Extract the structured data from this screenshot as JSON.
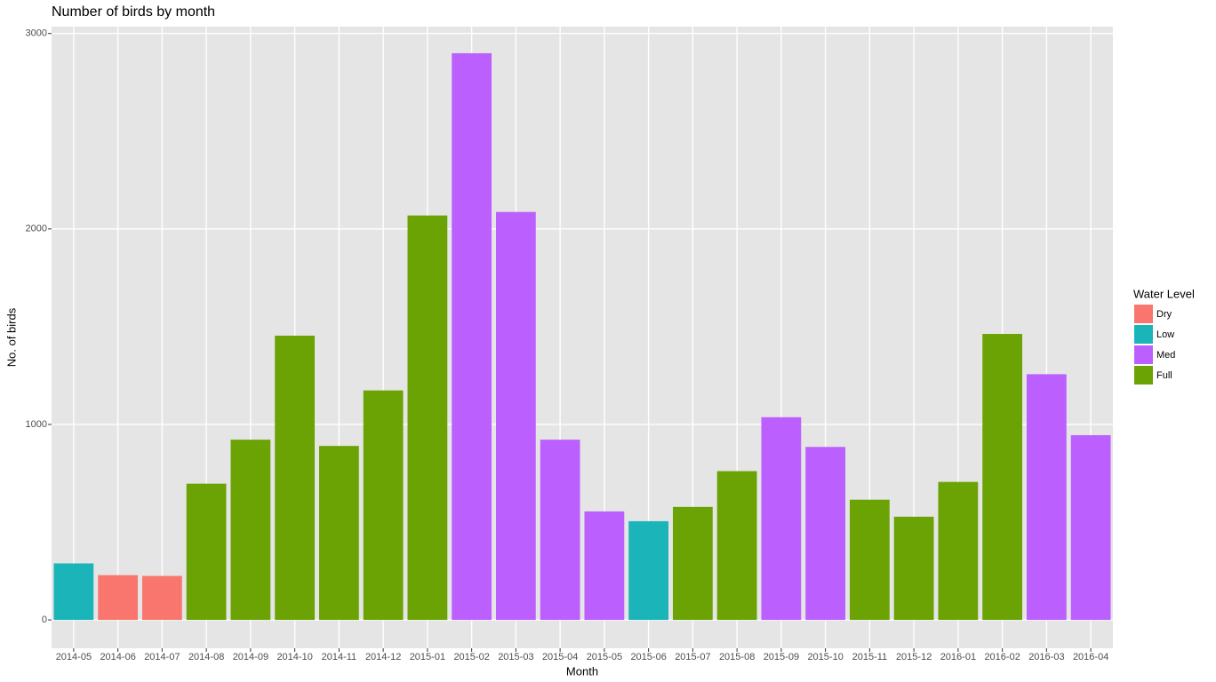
{
  "chart_data": {
    "type": "bar",
    "title": "Number of birds by month",
    "x_label": "Month",
    "y_label": "No. of birds",
    "legend_title": "Water Level",
    "legend_position": "right",
    "grid": true,
    "categories": [
      "2014-05",
      "2014-06",
      "2014-07",
      "2014-08",
      "2014-09",
      "2014-10",
      "2014-11",
      "2014-12",
      "2015-01",
      "2015-02",
      "2015-03",
      "2015-04",
      "2015-05",
      "2015-06",
      "2015-07",
      "2015-08",
      "2015-09",
      "2015-10",
      "2015-11",
      "2015-12",
      "2016-01",
      "2016-02",
      "2016-03",
      "2016-04"
    ],
    "series": [
      {
        "name": "Dry",
        "color": "#f8766d",
        "values": [
          null,
          229,
          225,
          null,
          null,
          null,
          null,
          null,
          null,
          null,
          null,
          null,
          null,
          null,
          null,
          null,
          null,
          null,
          null,
          null,
          null,
          null,
          null,
          null
        ]
      },
      {
        "name": "Low",
        "color": "#1bb5b9",
        "values": [
          289,
          null,
          null,
          null,
          null,
          null,
          null,
          null,
          null,
          null,
          null,
          null,
          null,
          505,
          null,
          null,
          null,
          null,
          null,
          null,
          null,
          null,
          null,
          null
        ]
      },
      {
        "name": "Med",
        "color": "#bb60fe",
        "values": [
          null,
          null,
          null,
          null,
          null,
          null,
          null,
          null,
          null,
          2899,
          2087,
          922,
          555,
          null,
          null,
          null,
          1037,
          885,
          null,
          null,
          null,
          null,
          1257,
          945
        ]
      },
      {
        "name": "Full",
        "color": "#6ba304",
        "values": [
          null,
          null,
          null,
          697,
          922,
          1454,
          890,
          1174,
          2069,
          null,
          null,
          null,
          null,
          null,
          578,
          761,
          null,
          null,
          615,
          528,
          706,
          1463,
          null,
          null
        ]
      }
    ],
    "ylim": [
      -145,
      3035
    ],
    "yticks": [
      0,
      1000,
      2000,
      3000
    ]
  }
}
